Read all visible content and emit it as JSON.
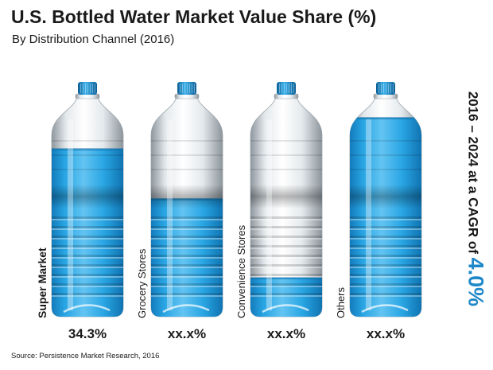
{
  "title": "U.S. Bottled Water Market Value Share (%)",
  "subtitle": "By Distribution Channel (2016)",
  "source": "Source: Persistence Market Research, 2016",
  "cagr": {
    "prefix": "2016 – 2024 at a CAGR of ",
    "value": "4.0%"
  },
  "colors": {
    "water": "#29a9e6",
    "water_dark": "#0f7fc0",
    "accent": "#1e88c8",
    "text": "#1a1a1a"
  },
  "chart_data": {
    "type": "bar",
    "title": "U.S. Bottled Water Market Value Share (%)",
    "subtitle": "By Distribution Channel (2016)",
    "categories": [
      "Super Market",
      "Grocery Stores",
      "Convenience Stores",
      "Others"
    ],
    "value_labels": [
      "34.3%",
      "xx.x%",
      "xx.x%",
      "xx.x%"
    ],
    "values": [
      34.3,
      null,
      null,
      null
    ],
    "fill_level": [
      0.8,
      0.56,
      0.18,
      0.95
    ],
    "marks": "water-filled bottles"
  }
}
